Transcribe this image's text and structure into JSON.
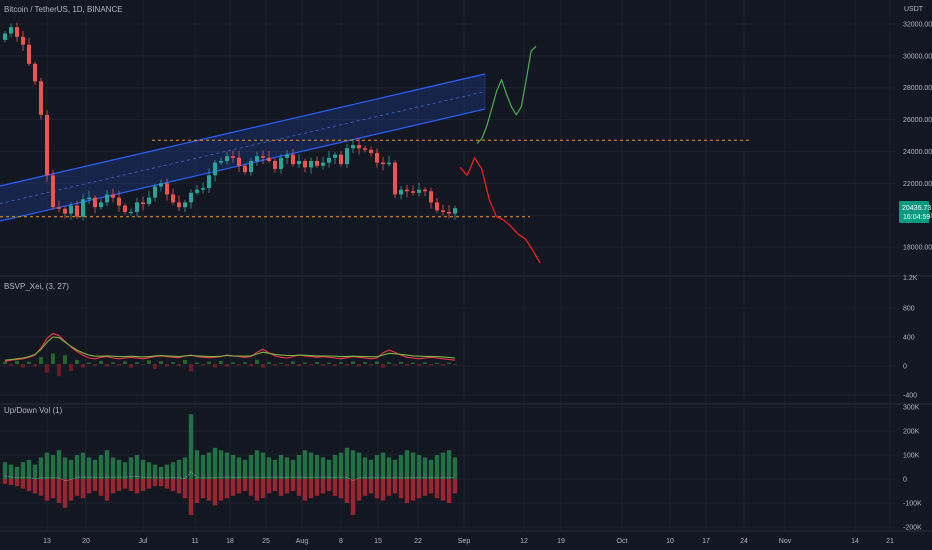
{
  "header": {
    "symbol_title": "Bitcoin / TetherUS, 1D, BINANCE",
    "currency": "USDT"
  },
  "price_tag": {
    "price": "20436.73",
    "countdown": "16:04:59",
    "value": 20436.73
  },
  "panes": {
    "volume_profile_title": "BSVP_Xei, (3, 27)",
    "updown_title": "Up/Down Vol (1)"
  },
  "chart_data": [
    {
      "type": "candlestick",
      "title": "Bitcoin / TetherUS, 1D, BINANCE",
      "ylabel": "USDT",
      "ylim": [
        16600,
        33500
      ],
      "y_ticks": [
        18000,
        20000,
        22000,
        24000,
        26000,
        28000,
        30000,
        32000
      ],
      "y_tick_labels": [
        "18000.00",
        "20000.00",
        "22000.00",
        "24000.00",
        "26000.00",
        "28000.00",
        "30000.00",
        "32000.00"
      ],
      "x_tick_labels": [
        "13",
        "20",
        "Jul",
        "11",
        "18",
        "25",
        "Aug",
        "8",
        "15",
        "22",
        "Sep",
        "12",
        "19",
        "Oct",
        "10",
        "17",
        "24",
        "Nov",
        "14",
        "21"
      ],
      "closes": [
        31400,
        31800,
        31200,
        30700,
        29500,
        28400,
        26300,
        22500,
        20500,
        20400,
        20100,
        20600,
        19900,
        21000,
        21100,
        20500,
        20800,
        21300,
        21100,
        20600,
        20200,
        20200,
        20800,
        20700,
        21100,
        21800,
        22000,
        21300,
        20800,
        20500,
        20800,
        21400,
        21600,
        21700,
        22500,
        23300,
        23400,
        23700,
        23600,
        23100,
        22700,
        23400,
        23700,
        23600,
        23400,
        22900,
        23600,
        23800,
        23200,
        23400,
        23000,
        23400,
        23100,
        23300,
        23600,
        23800,
        23200,
        24200,
        24400,
        24200,
        24100,
        23900,
        23300,
        23200,
        23300,
        21300,
        21600,
        21500,
        21400,
        21600,
        21500,
        20800,
        20300,
        20200,
        20100,
        20436.73
      ],
      "support_level": 19900,
      "resistance_level": 24700,
      "channel": {
        "lower_start": 19700,
        "upper_start": 21900,
        "slope_per_bar": 87
      },
      "projection_bullish": [
        24500,
        24800,
        25600,
        26700,
        27800,
        28500,
        27600,
        26800,
        26300,
        26800,
        28500,
        30300,
        30600
      ],
      "projection_bearish": [
        23000,
        22500,
        23600,
        22900,
        21000,
        19900,
        19700,
        19300,
        18800,
        18500,
        17800,
        17000
      ],
      "colors": {
        "up": "#26a69a",
        "down": "#ef5350",
        "channel": "#2962ff",
        "level": "#f7931a",
        "bullish_path": "#4caf50",
        "bearish_path": "#ff1e1e"
      }
    },
    {
      "type": "line",
      "title": "BSVP_Xei, (3, 27)",
      "ylim": [
        -400,
        1200
      ],
      "y_ticks": [
        -400,
        0,
        400,
        800,
        1200
      ],
      "y_tick_labels": [
        "-400",
        "0",
        "400",
        "800",
        "1.2K"
      ],
      "histogram": [
        35,
        -30,
        55,
        -60,
        40,
        -45,
        120,
        -150,
        180,
        -210,
        150,
        -120,
        70,
        -60,
        25,
        -30,
        55,
        -40,
        30,
        -25,
        45,
        -65,
        30,
        -15,
        65,
        -85,
        50,
        -40,
        30,
        -35,
        70,
        -130,
        25,
        -20,
        40,
        -60,
        55,
        -45,
        30,
        -25,
        30,
        -40,
        75,
        -60,
        30,
        -25,
        20,
        -30,
        45,
        -35,
        25,
        -20,
        35,
        -25,
        25,
        -35,
        30,
        -25,
        45,
        -40,
        30,
        -25,
        45,
        -60,
        30,
        -25,
        35,
        -30,
        25,
        -30,
        30,
        -25,
        20,
        -25,
        25,
        -15
      ],
      "series": [
        {
          "values": [
            60,
            80,
            90,
            100,
            120,
            150,
            250,
            380,
            450,
            420,
            340,
            260,
            200,
            150,
            110,
            100,
            120,
            130,
            110,
            100,
            110,
            120,
            110,
            100,
            115,
            130,
            140,
            130,
            120,
            115,
            140,
            150,
            130,
            120,
            115,
            120,
            130,
            150,
            140,
            130,
            120,
            130,
            190,
            230,
            180,
            140,
            120,
            110,
            130,
            150,
            140,
            130,
            120,
            130,
            120,
            110,
            100,
            115,
            130,
            120,
            110,
            100,
            110,
            180,
            220,
            190,
            150,
            120,
            110,
            100,
            110,
            120,
            110,
            100,
            90,
            80
          ],
          "color": "#f23645"
        },
        {
          "values": [
            80,
            90,
            100,
            110,
            130,
            160,
            230,
            330,
            400,
            390,
            330,
            270,
            220,
            180,
            150,
            135,
            135,
            140,
            135,
            130,
            130,
            135,
            130,
            125,
            130,
            140,
            145,
            140,
            135,
            130,
            140,
            145,
            140,
            135,
            130,
            130,
            135,
            145,
            140,
            138,
            135,
            140,
            165,
            190,
            175,
            160,
            150,
            145,
            145,
            150,
            148,
            145,
            140,
            140,
            138,
            135,
            130,
            132,
            135,
            133,
            130,
            128,
            128,
            150,
            175,
            170,
            160,
            150,
            140,
            135,
            133,
            133,
            130,
            125,
            118,
            110
          ],
          "color": "#7cb342"
        }
      ]
    },
    {
      "type": "bar",
      "title": "Up/Down Vol (1)",
      "ylim": [
        -220000,
        300000
      ],
      "y_ticks": [
        -200000,
        -100000,
        0,
        100000,
        200000,
        300000
      ],
      "y_tick_labels": [
        "-200K",
        "-100K",
        "0",
        "100K",
        "200K",
        "300K"
      ],
      "up_volume": [
        70000,
        60000,
        50000,
        70000,
        80000,
        60000,
        90000,
        110000,
        100000,
        120000,
        90000,
        80000,
        100000,
        110000,
        90000,
        80000,
        100000,
        120000,
        90000,
        80000,
        70000,
        90000,
        100000,
        80000,
        70000,
        60000,
        50000,
        60000,
        70000,
        80000,
        90000,
        270000,
        120000,
        100000,
        110000,
        130000,
        120000,
        110000,
        100000,
        90000,
        80000,
        100000,
        120000,
        110000,
        90000,
        80000,
        100000,
        90000,
        80000,
        100000,
        120000,
        110000,
        100000,
        90000,
        80000,
        100000,
        110000,
        130000,
        120000,
        110000,
        90000,
        80000,
        100000,
        110000,
        90000,
        80000,
        100000,
        120000,
        110000,
        100000,
        90000,
        80000,
        100000,
        110000,
        120000,
        90000
      ],
      "down_volume": [
        -20000,
        -25000,
        -30000,
        -40000,
        -50000,
        -60000,
        -70000,
        -90000,
        -80000,
        -100000,
        -120000,
        -90000,
        -70000,
        -80000,
        -60000,
        -50000,
        -70000,
        -90000,
        -60000,
        -50000,
        -40000,
        -50000,
        -60000,
        -50000,
        -40000,
        -30000,
        -30000,
        -40000,
        -50000,
        -60000,
        -80000,
        -150000,
        -100000,
        -80000,
        -90000,
        -110000,
        -90000,
        -80000,
        -70000,
        -60000,
        -50000,
        -70000,
        -90000,
        -80000,
        -60000,
        -50000,
        -70000,
        -60000,
        -50000,
        -70000,
        -90000,
        -80000,
        -70000,
        -60000,
        -50000,
        -70000,
        -80000,
        -100000,
        -150000,
        -90000,
        -70000,
        -60000,
        -80000,
        -90000,
        -70000,
        -60000,
        -80000,
        -100000,
        -90000,
        -80000,
        -70000,
        -60000,
        -80000,
        -90000,
        -100000,
        -60000
      ],
      "colors": {
        "up": "#26804a",
        "down": "#b22833"
      }
    }
  ]
}
